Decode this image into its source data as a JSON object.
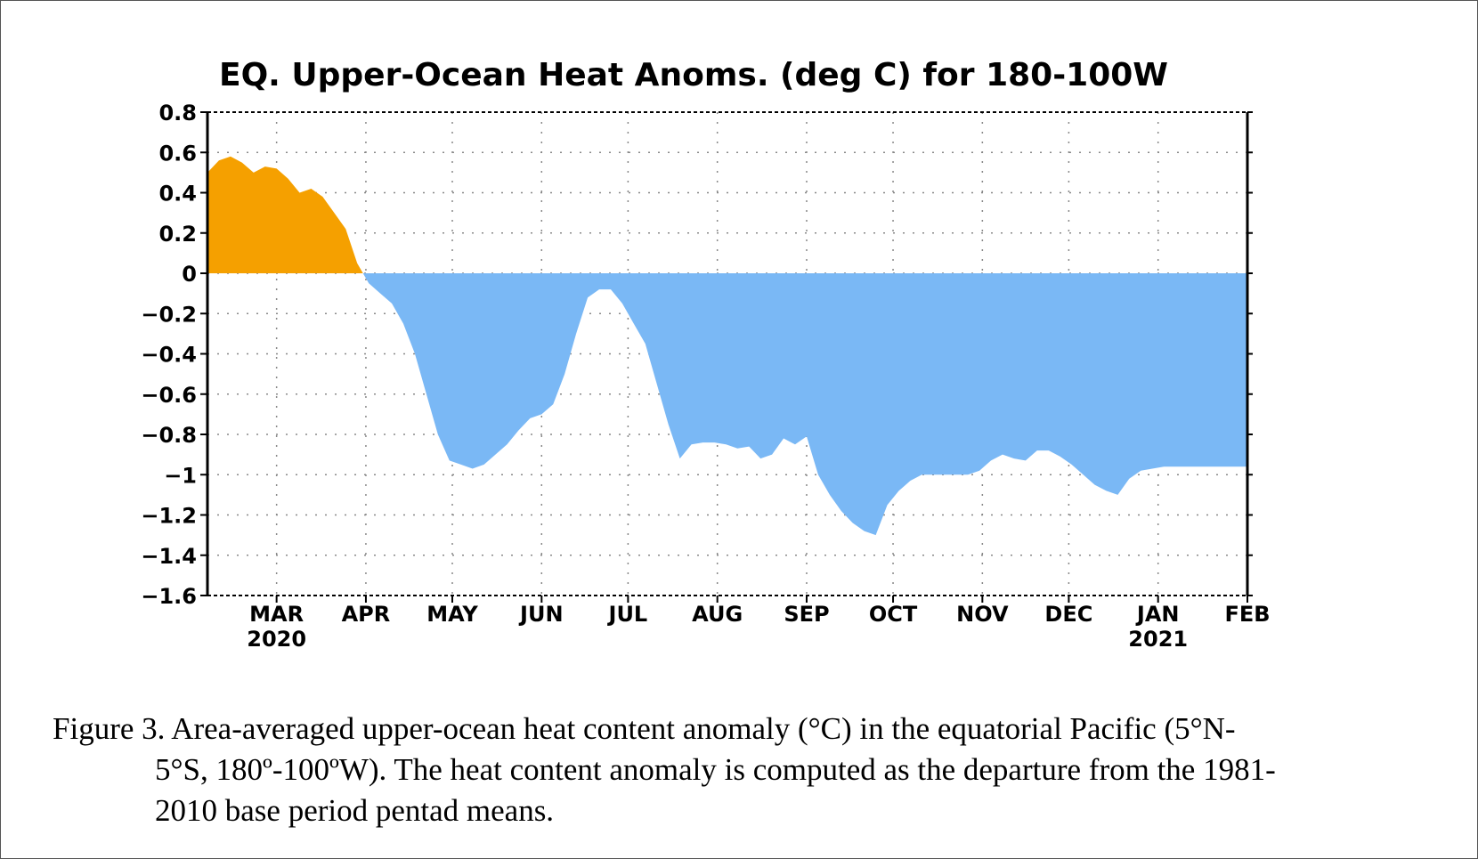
{
  "chart_data": {
    "type": "area",
    "title": "EQ. Upper-Ocean Heat Anoms. (deg C) for 180-100W",
    "xlabel": "",
    "ylabel": "",
    "ylim": [
      -1.6,
      0.8
    ],
    "yticks": [
      0.8,
      0.6,
      0.4,
      0.2,
      0,
      -0.2,
      -0.4,
      -0.6,
      -0.8,
      -1,
      -1.2,
      -1.4,
      -1.6
    ],
    "ytick_labels": [
      "0.8",
      "0.6",
      "0.4",
      "0.2",
      "0",
      "−0.2",
      "−0.4",
      "−0.6",
      "−0.8",
      "−1",
      "−1.2",
      "−1.4",
      "−1.6"
    ],
    "xlim": [
      "2020-02-06",
      "2021-02-01"
    ],
    "xticks": [
      {
        "date": "2020-03-01",
        "label": "MAR",
        "year": "2020"
      },
      {
        "date": "2020-04-01",
        "label": "APR",
        "year": ""
      },
      {
        "date": "2020-05-01",
        "label": "MAY",
        "year": ""
      },
      {
        "date": "2020-06-01",
        "label": "JUN",
        "year": ""
      },
      {
        "date": "2020-07-01",
        "label": "JUL",
        "year": ""
      },
      {
        "date": "2020-08-01",
        "label": "AUG",
        "year": ""
      },
      {
        "date": "2020-09-01",
        "label": "SEP",
        "year": ""
      },
      {
        "date": "2020-10-01",
        "label": "OCT",
        "year": ""
      },
      {
        "date": "2020-11-01",
        "label": "NOV",
        "year": ""
      },
      {
        "date": "2020-12-01",
        "label": "DEC",
        "year": ""
      },
      {
        "date": "2021-01-01",
        "label": "JAN",
        "year": "2021"
      },
      {
        "date": "2021-02-01",
        "label": "FEB",
        "year": ""
      }
    ],
    "grid": true,
    "positive_color": "#f5a000",
    "negative_color": "#7ab8f5",
    "series": [
      {
        "x": [
          "2020-02-06",
          "2020-02-10",
          "2020-02-14",
          "2020-02-18",
          "2020-02-22",
          "2020-02-26",
          "2020-03-01",
          "2020-03-05",
          "2020-03-09",
          "2020-03-13",
          "2020-03-17",
          "2020-03-21",
          "2020-03-25",
          "2020-03-29",
          "2020-04-02",
          "2020-04-06",
          "2020-04-10",
          "2020-04-14",
          "2020-04-18",
          "2020-04-22",
          "2020-04-26",
          "2020-04-30",
          "2020-05-04",
          "2020-05-08",
          "2020-05-12",
          "2020-05-16",
          "2020-05-20",
          "2020-05-24",
          "2020-05-28",
          "2020-06-01",
          "2020-06-05",
          "2020-06-09",
          "2020-06-13",
          "2020-06-17",
          "2020-06-21",
          "2020-06-25",
          "2020-06-29",
          "2020-07-03",
          "2020-07-07",
          "2020-07-11",
          "2020-07-15",
          "2020-07-19",
          "2020-07-23",
          "2020-07-27",
          "2020-07-31",
          "2020-08-04",
          "2020-08-08",
          "2020-08-12",
          "2020-08-16",
          "2020-08-20",
          "2020-08-24",
          "2020-08-28",
          "2020-09-01",
          "2020-09-05",
          "2020-09-09",
          "2020-09-13",
          "2020-09-17",
          "2020-09-21",
          "2020-09-25",
          "2020-09-29",
          "2020-10-03",
          "2020-10-07",
          "2020-10-11",
          "2020-10-15",
          "2020-10-19",
          "2020-10-23",
          "2020-10-27",
          "2020-10-31",
          "2020-11-04",
          "2020-11-08",
          "2020-11-12",
          "2020-11-16",
          "2020-11-20",
          "2020-11-24",
          "2020-11-28",
          "2020-12-02",
          "2020-12-06",
          "2020-12-10",
          "2020-12-14",
          "2020-12-18",
          "2020-12-22",
          "2020-12-26",
          "2020-12-30",
          "2021-01-03",
          "2021-01-07",
          "2021-01-11",
          "2021-01-15",
          "2021-01-19",
          "2021-01-23",
          "2021-01-27",
          "2021-02-01"
        ],
        "values": [
          0.5,
          0.56,
          0.58,
          0.55,
          0.5,
          0.53,
          0.52,
          0.47,
          0.4,
          0.42,
          0.38,
          0.3,
          0.22,
          0.05,
          -0.05,
          -0.1,
          -0.15,
          -0.25,
          -0.4,
          -0.6,
          -0.8,
          -0.93,
          -0.95,
          -0.97,
          -0.95,
          -0.9,
          -0.85,
          -0.78,
          -0.72,
          -0.7,
          -0.65,
          -0.5,
          -0.3,
          -0.12,
          -0.08,
          -0.08,
          -0.15,
          -0.25,
          -0.35,
          -0.55,
          -0.75,
          -0.92,
          -0.85,
          -0.84,
          -0.84,
          -0.85,
          -0.87,
          -0.86,
          -0.92,
          -0.9,
          -0.82,
          -0.85,
          -0.81,
          -1.0,
          -1.1,
          -1.18,
          -1.24,
          -1.28,
          -1.3,
          -1.15,
          -1.08,
          -1.03,
          -1.0,
          -1.0,
          -1.0,
          -1.0,
          -1.0,
          -0.98,
          -0.93,
          -0.9,
          -0.92,
          -0.93,
          -0.88,
          -0.88,
          -0.91,
          -0.95,
          -1.0,
          -1.05,
          -1.08,
          -1.1,
          -1.02,
          -0.98,
          -0.97,
          -0.96,
          -0.96,
          -0.96,
          -0.96,
          -0.96,
          -0.96,
          -0.96,
          -0.96
        ]
      }
    ]
  },
  "caption": {
    "line1": "Figure  3. Area-averaged upper-ocean heat content anomaly  (°C) in the equatorial  Pacific (5°N-",
    "line2": "5°S, 180º-100ºW).  The heat content anomaly is computed as the departure  from the 1981-",
    "line3": "2010  base period  pentad means."
  }
}
